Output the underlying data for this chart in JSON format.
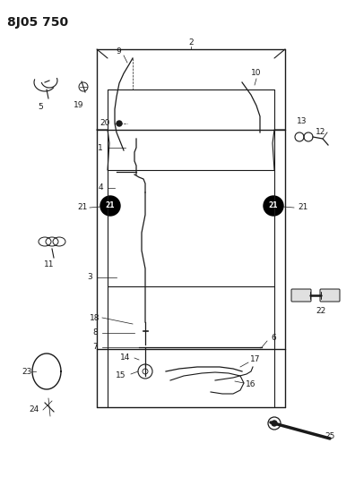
{
  "title": "8J05 750",
  "bg_color": "#ffffff",
  "line_color": "#1a1a1a",
  "title_fontsize": 10,
  "label_fontsize": 6.5,
  "fig_width": 3.96,
  "fig_height": 5.33,
  "dpi": 100
}
